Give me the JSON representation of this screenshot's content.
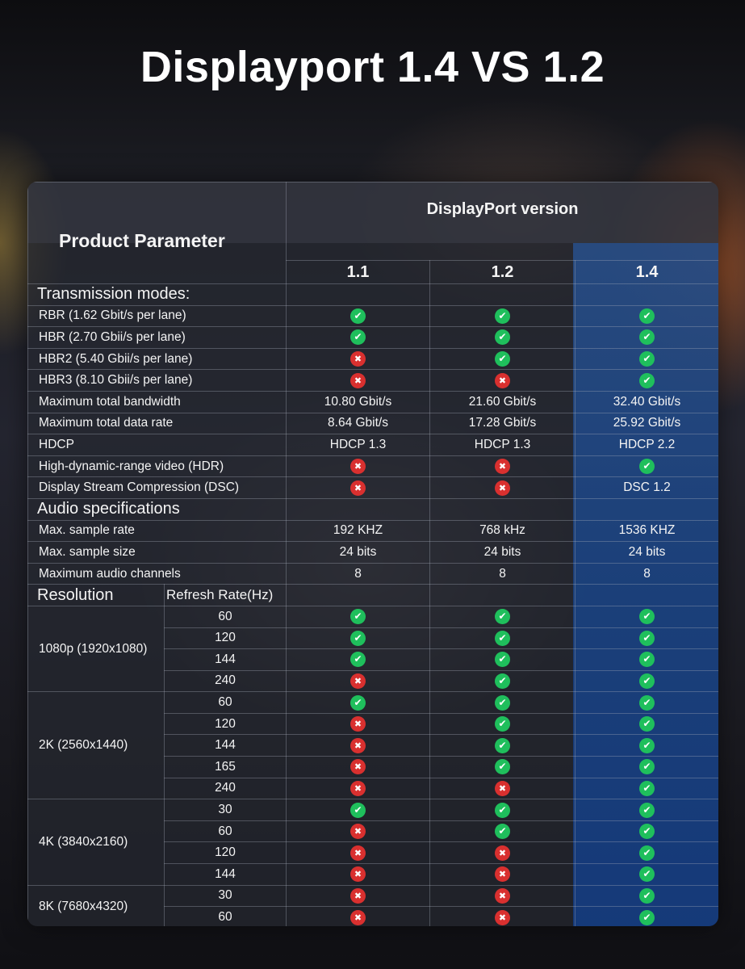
{
  "title": "Displayport 1.4 VS 1.2",
  "table": {
    "param_header": "Product Parameter",
    "version_header": "DisplayPort version",
    "versions": [
      "1.1",
      "1.2",
      "1.4"
    ],
    "sections": [
      {
        "label": "Transmission modes:",
        "after": -1
      },
      {
        "label": "Audio specifications",
        "after": 10
      },
      {
        "label": "Resolution",
        "sub": "Refresh Rate(Hz)",
        "after": 13
      }
    ],
    "rows": [
      {
        "label": "RBR (1.62 Gbit/s per lane)",
        "v": [
          "yes",
          "yes",
          "yes"
        ]
      },
      {
        "label": "HBR (2.70 Gbii/s per lane)",
        "v": [
          "yes",
          "yes",
          "yes"
        ]
      },
      {
        "label": "HBR2 (5.40 Gbii/s per lane)",
        "v": [
          "no",
          "yes",
          "yes"
        ]
      },
      {
        "label": "HBR3 (8.10 Gbii/s per lane)",
        "v": [
          "no",
          "no",
          "yes"
        ]
      },
      {
        "label": "Maximum total bandwidth",
        "v": [
          "10.80 Gbit/s",
          "21.60 Gbit/s",
          "32.40 Gbit/s"
        ]
      },
      {
        "label": "Maximum total data rate",
        "v": [
          "8.64 Gbit/s",
          "17.28 Gbit/s",
          "25.92 Gbit/s"
        ]
      },
      {
        "label": "HDCP",
        "v": [
          "HDCP 1.3",
          "HDCP 1.3",
          "HDCP 2.2"
        ]
      },
      {
        "label": "High-dynamic-range video (HDR)",
        "v": [
          "no",
          "no",
          "yes"
        ]
      },
      {
        "label": "Display Stream Compression (DSC)",
        "v": [
          "no",
          "no",
          "DSC 1.2"
        ]
      },
      {
        "label": "Max. sample rate",
        "v": [
          "192 KHZ",
          "768 kHz",
          "1536 KHZ"
        ]
      },
      {
        "label": "Max. sample size",
        "v": [
          "24 bits",
          "24 bits",
          "24 bits"
        ]
      },
      {
        "label": "Maximum audio channels",
        "v": [
          "8",
          "8",
          "8"
        ]
      }
    ],
    "resolutions": [
      {
        "label": "1080p (1920x1080)",
        "rates": [
          {
            "hz": "60",
            "v": [
              "yes",
              "yes",
              "yes"
            ]
          },
          {
            "hz": "120",
            "v": [
              "yes",
              "yes",
              "yes"
            ]
          },
          {
            "hz": "144",
            "v": [
              "yes",
              "yes",
              "yes"
            ]
          },
          {
            "hz": "240",
            "v": [
              "no",
              "yes",
              "yes"
            ]
          }
        ]
      },
      {
        "label": "2K (2560x1440)",
        "rates": [
          {
            "hz": "60",
            "v": [
              "yes",
              "yes",
              "yes"
            ]
          },
          {
            "hz": "120",
            "v": [
              "no",
              "yes",
              "yes"
            ]
          },
          {
            "hz": "144",
            "v": [
              "no",
              "yes",
              "yes"
            ]
          },
          {
            "hz": "165",
            "v": [
              "no",
              "yes",
              "yes"
            ]
          },
          {
            "hz": "240",
            "v": [
              "no",
              "no",
              "yes"
            ]
          }
        ]
      },
      {
        "label": "4K (3840x2160)",
        "rates": [
          {
            "hz": "30",
            "v": [
              "yes",
              "yes",
              "yes"
            ]
          },
          {
            "hz": "60",
            "v": [
              "no",
              "yes",
              "yes"
            ]
          },
          {
            "hz": "120",
            "v": [
              "no",
              "no",
              "yes"
            ]
          },
          {
            "hz": "144",
            "v": [
              "no",
              "no",
              "yes"
            ]
          }
        ]
      },
      {
        "label": "8K (7680x4320)",
        "rates": [
          {
            "hz": "30",
            "v": [
              "no",
              "no",
              "yes"
            ]
          },
          {
            "hz": "60",
            "v": [
              "no",
              "no",
              "yes"
            ]
          }
        ]
      }
    ]
  },
  "colors": {
    "yes": "#1fbf5c",
    "no": "#d9302f",
    "highlight_column": "#1f4f8f"
  },
  "icons": {
    "yes": "check-circle-icon",
    "no": "x-circle-icon"
  }
}
